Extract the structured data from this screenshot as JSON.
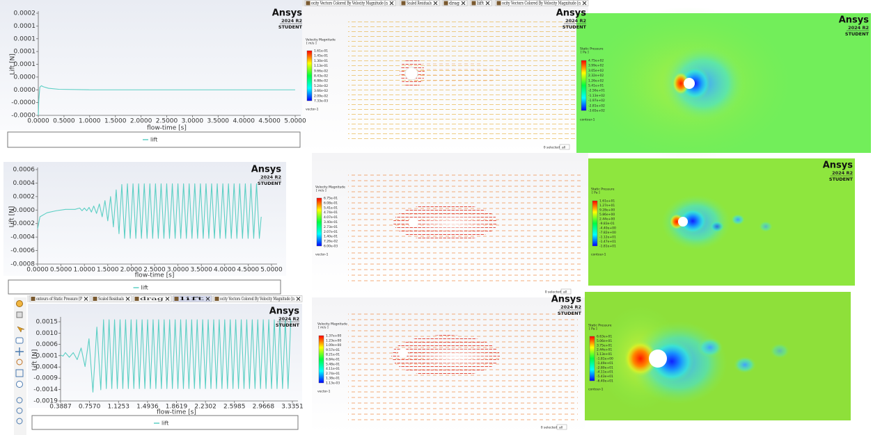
{
  "chart_data": [
    {
      "type": "line",
      "y_label": "Lift [N]",
      "x_label": "flow-time [s]",
      "x": [
        0,
        0.01,
        0.03,
        0.06,
        0.1,
        0.2,
        0.4,
        1,
        2,
        3,
        4,
        5
      ],
      "series": [
        {
          "name": "lift",
          "color": "#5ccfc4",
          "values": [
            -5e-05,
            -2e-05,
            5e-06,
            8e-06,
            6e-06,
            3e-06,
            1e-06,
            0,
            0,
            0,
            0,
            0
          ]
        }
      ],
      "xlim": [
        0,
        5
      ],
      "ylim": [
        -5e-05,
        0.00015
      ],
      "xticks": [
        {
          "value": 0,
          "label": "0.0000"
        },
        {
          "value": 0.5,
          "label": "0.5000"
        },
        {
          "value": 1,
          "label": "1.0000"
        },
        {
          "value": 1.5,
          "label": "1.5000"
        },
        {
          "value": 2,
          "label": "2.0000"
        },
        {
          "value": 2.5,
          "label": "2.5000"
        },
        {
          "value": 3,
          "label": "3.0000"
        },
        {
          "value": 3.5,
          "label": "3.5000"
        },
        {
          "value": 4,
          "label": "4.0000"
        },
        {
          "value": 4.5,
          "label": "4.5000"
        },
        {
          "value": 5,
          "label": "5.0000"
        }
      ],
      "yticks": [
        {
          "value": 0.00015,
          "label": "0.0002"
        },
        {
          "value": 0.000125,
          "label": "0.0001"
        },
        {
          "value": 0.0001,
          "label": "0.0001"
        },
        {
          "value": 7.5e-05,
          "label": "0.0001"
        },
        {
          "value": 5e-05,
          "label": "0.0001"
        },
        {
          "value": 2.5e-05,
          "label": "0.0000"
        },
        {
          "value": 0,
          "label": "0.0000"
        },
        {
          "value": -2.5e-05,
          "label": "-0.0000"
        },
        {
          "value": -5e-05,
          "label": "-0.0000"
        }
      ]
    },
    {
      "type": "line",
      "y_label": "Lift [N]",
      "x_label": "flow-time [s]",
      "x": [
        0,
        0.05,
        0.2,
        0.4,
        0.6,
        0.8,
        0.9,
        0.95,
        1.0,
        1.05,
        1.1,
        1.15,
        1.2,
        1.26,
        1.32,
        1.38,
        1.44,
        1.5,
        1.56,
        1.62,
        1.68,
        1.74,
        1.8,
        1.86,
        1.92,
        1.98,
        2.04,
        2.1,
        2.16,
        2.22,
        2.28,
        2.34,
        2.4,
        2.46,
        2.52,
        2.58,
        2.64,
        2.7,
        2.76,
        2.82,
        2.88,
        2.94,
        3.0,
        3.06,
        3.12,
        3.18,
        3.24,
        3.3,
        3.36,
        3.42,
        3.48,
        3.54,
        3.6,
        3.66,
        3.72,
        3.78,
        3.84,
        3.9,
        3.96,
        4.02,
        4.08,
        4.14,
        4.2,
        4.26,
        4.32,
        4.38,
        4.44,
        4.5,
        4.56,
        4.62,
        4.68,
        4.74,
        4.78
      ],
      "series": [
        {
          "name": "lift",
          "color": "#5ccfc4",
          "values": [
            -0.00028,
            -0.0001,
            -4e-05,
            -1e-05,
            1e-05,
            1e-05,
            3e-05,
            -1e-05,
            3e-05,
            -1e-05,
            4e-05,
            -3e-05,
            6e-05,
            -5e-05,
            9e-05,
            -0.0001,
            0.00014,
            -0.00016,
            0.0002,
            -0.00025,
            0.0003,
            -0.00035,
            0.00038,
            -0.00042,
            0.00039,
            -0.00042,
            0.00039,
            -0.00042,
            0.00039,
            -0.00042,
            0.00039,
            -0.00042,
            0.00039,
            -0.00042,
            0.00039,
            -0.00042,
            0.00039,
            -0.00042,
            0.00039,
            -0.00042,
            0.00039,
            -0.00042,
            0.00039,
            -0.00042,
            0.00039,
            -0.00042,
            0.00039,
            -0.00042,
            0.00039,
            -0.00042,
            0.00039,
            -0.00042,
            0.00039,
            -0.00042,
            0.00039,
            -0.00042,
            0.00039,
            -0.00042,
            0.00039,
            -0.00042,
            0.00039,
            -0.00042,
            0.00039,
            -0.00042,
            0.00039,
            -0.00042,
            0.00039,
            -0.00042,
            0.00039,
            -0.00042,
            0.00039,
            -0.00042,
            -0.0001
          ]
        }
      ],
      "xlim": [
        0,
        5
      ],
      "ylim": [
        -0.0008,
        0.0006
      ],
      "xticks": [
        {
          "value": 0,
          "label": "0.0000"
        },
        {
          "value": 0.5,
          "label": "0.5000"
        },
        {
          "value": 1,
          "label": "1.0000"
        },
        {
          "value": 1.5,
          "label": "1.5000"
        },
        {
          "value": 2,
          "label": "2.0000"
        },
        {
          "value": 2.5,
          "label": "2.5000"
        },
        {
          "value": 3,
          "label": "3.0000"
        },
        {
          "value": 3.5,
          "label": "3.5000"
        },
        {
          "value": 4,
          "label": "4.0000"
        },
        {
          "value": 4.5,
          "label": "4.5000"
        },
        {
          "value": 5,
          "label": "5.0000"
        }
      ],
      "yticks": [
        0.0006,
        0.0004,
        0.0002,
        {
          "value": 0,
          "label": "0.0000"
        },
        -0.0002,
        -0.0004,
        -0.0006,
        -0.0008
      ]
    },
    {
      "type": "line",
      "y_label": "Lift [N]",
      "x_label": "flow-time [s]",
      "x": [
        0.3887,
        0.42,
        0.45,
        0.5,
        0.55,
        0.6,
        0.65,
        0.7,
        0.75,
        0.8,
        0.85,
        0.9,
        0.935,
        0.97,
        1.005,
        1.04,
        1.075,
        1.11,
        1.145,
        1.18,
        1.215,
        1.25,
        1.285,
        1.32,
        1.355,
        1.39,
        1.425,
        1.46,
        1.495,
        1.53,
        1.565,
        1.6,
        1.635,
        1.67,
        1.705,
        1.74,
        1.775,
        1.81,
        1.845,
        1.88,
        1.915,
        1.95,
        1.985,
        2.02,
        2.055,
        2.09,
        2.125,
        2.16,
        2.195,
        2.23,
        2.265,
        2.3,
        2.335,
        2.37,
        2.405,
        2.44,
        2.475,
        2.51,
        2.545,
        2.58,
        2.615,
        2.65,
        2.685,
        2.72,
        2.755,
        2.79,
        2.825,
        2.86,
        2.895,
        2.93,
        2.965,
        3.0,
        3.035,
        3.07,
        3.105,
        3.14,
        3.175,
        3.21,
        3.245,
        3.28,
        3.315
      ],
      "series": [
        {
          "name": "lift",
          "color": "#5ccfc4",
          "values": [
            0.0001,
            5e-05,
            0.0002,
            0,
            0.0002,
            -0.0001,
            0.0004,
            -0.0004,
            0.0008,
            -0.0015,
            0.0013,
            -0.0014,
            0.00162,
            -0.00135,
            0.00162,
            -0.00135,
            0.00162,
            -0.00135,
            0.00162,
            -0.00135,
            0.00162,
            -0.00135,
            0.00162,
            -0.00135,
            0.00162,
            -0.00135,
            0.00162,
            -0.00135,
            0.00162,
            -0.00135,
            0.00162,
            -0.00135,
            0.00162,
            -0.00135,
            0.00162,
            -0.00135,
            0.00162,
            -0.00135,
            0.00162,
            -0.00135,
            0.00162,
            -0.00135,
            0.00162,
            -0.00135,
            0.00162,
            -0.00135,
            0.00162,
            -0.00135,
            0.00162,
            -0.00135,
            0.00162,
            -0.00135,
            0.00162,
            -0.00135,
            0.00162,
            -0.00135,
            0.00162,
            -0.00135,
            0.00162,
            -0.00135,
            0.00162,
            -0.00135,
            0.00162,
            -0.00135,
            0.00162,
            -0.00135,
            0.00162,
            -0.00135,
            0.00162,
            -0.00135,
            0.00162,
            -0.00135,
            0.00162,
            -0.00135,
            0.00162,
            -0.00135,
            0.00162,
            -0.00135,
            0.00162,
            -0.00135,
            0.00162
          ]
        }
      ],
      "xlim": [
        0.3887,
        3.3351
      ],
      "ylim": [
        -0.00188,
        0.00165
      ],
      "xticks": [
        0.3887,
        {
          "value": 0.757,
          "label": "0.7570"
        },
        1.1253,
        1.4936,
        1.8619,
        2.2302,
        2.5985,
        2.9668,
        3.3351
      ],
      "yticks": [
        {
          "value": 0.00153,
          "label": "0.0015"
        },
        {
          "value": 0.00104,
          "label": "0.0010"
        },
        {
          "value": 0.00056,
          "label": "0.0006"
        },
        {
          "value": 7e-05,
          "label": "0.0001"
        },
        {
          "value": -0.00042,
          "label": "-0.0004"
        },
        {
          "value": -0.0009,
          "label": "-0.0009"
        },
        {
          "value": -0.00139,
          "label": "-0.0014"
        },
        {
          "value": -0.00188,
          "label": "-0.0019"
        }
      ]
    }
  ],
  "plot_windows": [
    {
      "logo": {
        "brand": "Ansys",
        "version": "2024 R2",
        "edition": "STUDENT"
      }
    },
    {
      "logo": {
        "brand": "Ansys",
        "version": "2024 R2",
        "edition": "STUDENT"
      }
    },
    {
      "logo": {
        "brand": "Ansys",
        "version": "2024 R2",
        "edition": "STUDENT"
      }
    }
  ],
  "tab_bars": [
    [
      "ocity Vectors Colored By Velocity Magnitude [n",
      "Scaled Residuals",
      "drag",
      "lift",
      "ocity Vectors Colored By Velocity Magnitude [n"
    ],
    [
      "ontours of Static Pressure [P",
      "Scaled Residuals",
      "drag",
      "lift",
      "ocity Vectors Colored By Velocity Magnitude [n"
    ]
  ],
  "vector_views": [
    {
      "title": "Velocity Magnitude",
      "unit": "[ m/s ]",
      "levels": [
        "1.61e-01",
        "1.45e-01",
        "1.30e-01",
        "1.13e-01",
        "9.66e-02",
        "8.43e-02",
        "6.88e-02",
        "5.24e-02",
        "3.66e-02",
        "2.09e-02",
        "7.33e-03"
      ],
      "object": "vector-1",
      "status": "0 selected",
      "filter": "all",
      "logo": {
        "brand": "Ansys",
        "version": "2024 R2",
        "edition": "STUDENT"
      }
    },
    {
      "title": "Velocity Magnitude",
      "unit": "[ m/s ]",
      "levels": [
        "6.75e-01",
        "6.08e-01",
        "5.41e-01",
        "4.74e-01",
        "4.07e-01",
        "3.40e-01",
        "2.73e-01",
        "2.07e-01",
        "1.40e-01",
        "7.26e-02",
        "6.00e-03"
      ],
      "object": "vector-1",
      "status": "0 selected",
      "filter": "all"
    },
    {
      "title": "Velocity Magnitude",
      "unit": "[ m/s ]",
      "levels": [
        "1.37e+00",
        "1.23e+00",
        "1.09e+00",
        "9.57e-01",
        "8.21e-01",
        "6.84e-01",
        "5.48e-01",
        "4.11e-01",
        "2.74e-01",
        "1.38e-01",
        "1.13e-03"
      ],
      "object": "vector-1",
      "status": "0 selected",
      "filter": "all",
      "logo": {
        "brand": "Ansys",
        "version": "2024 R2",
        "edition": "STUDENT"
      }
    }
  ],
  "contour_views": [
    {
      "title": "Static Pressure",
      "unit": "[ Pa ]",
      "levels": [
        "4.75e+02",
        "3.99e+02",
        "3.05e+02",
        "2.32e+02",
        "1.26e+02",
        "5.41e+01",
        "-2.56e+01",
        "-1.13e+02",
        "-1.97e+02",
        "-2.81e+02",
        "-3.65e+02"
      ],
      "object": "contour-1",
      "logo": {
        "brand": "Ansys",
        "version": "2024 R2",
        "edition": "STUDENT"
      }
    },
    {
      "title": "Static Pressure",
      "unit": "[ Pa ]",
      "levels": [
        "1.61e+01",
        "1.27e+01",
        "9.28e+00",
        "5.86e+00",
        "2.44e+00",
        "-9.83e-01",
        "-4.40e+00",
        "-7.82e+00",
        "-1.12e+01",
        "-1.47e+01",
        "-1.81e+01"
      ],
      "object": "contour-1",
      "logo": {
        "brand": "Ansys",
        "version": "2024 R2",
        "edition": "STUDENT"
      }
    },
    {
      "title": "Static Pressure",
      "unit": "[ Pa ]",
      "levels": [
        "6.63e+01",
        "5.06e+01",
        "3.75e+01",
        "2.44e+01",
        "1.13e+01",
        "-1.81e+00",
        "-1.49e+01",
        "-2.80e+01",
        "-4.11e+01",
        "-5.43e+01",
        "-6.40e+01"
      ],
      "object": "contour-1"
    }
  ]
}
